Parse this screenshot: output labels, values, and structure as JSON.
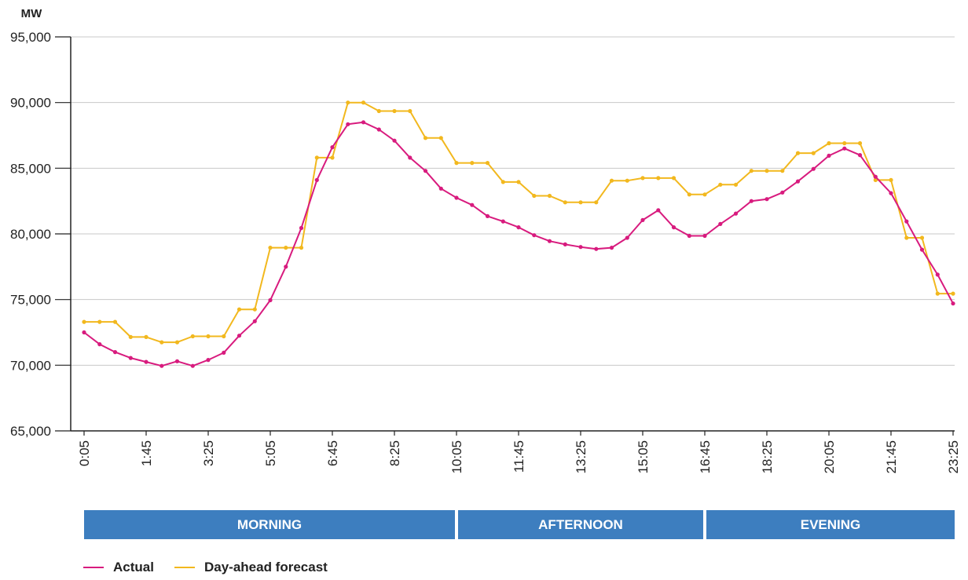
{
  "chart_data": {
    "type": "line",
    "ylabel": "MW",
    "ylim": [
      65000,
      95000
    ],
    "yticks": [
      65000,
      70000,
      75000,
      80000,
      85000,
      90000,
      95000
    ],
    "ytick_labels": [
      "65,000",
      "70,000",
      "75,000",
      "80,000",
      "85,000",
      "90,000",
      "95,000"
    ],
    "x_tick_labels": [
      "0:05",
      "1:45",
      "3:25",
      "5:05",
      "6:45",
      "8:25",
      "10:05",
      "11:45",
      "13:25",
      "15:05",
      "16:45",
      "18:25",
      "20:05",
      "21:45",
      "23:25"
    ],
    "grid": "horizontal",
    "periods": [
      "MORNING",
      "AFTERNOON",
      "EVENING"
    ],
    "period_color": "#3d7ebf",
    "series": [
      {
        "name": "Actual",
        "color": "#d81b7e",
        "values": [
          72500,
          71600,
          71000,
          70550,
          70250,
          69950,
          70300,
          69950,
          70400,
          70950,
          72250,
          73350,
          74950,
          77500,
          80450,
          84100,
          86600,
          88350,
          88500,
          87950,
          87100,
          85800,
          84800,
          83450,
          82750,
          82200,
          81350,
          80950,
          80500,
          79900,
          79450,
          79200,
          79000,
          78850,
          78950,
          79700,
          81050,
          81800,
          80500,
          79850,
          79850,
          80750,
          81550,
          82500,
          82650,
          83150,
          84000,
          84950,
          85950,
          86500,
          86000,
          84350,
          83100,
          80950,
          78800,
          76900,
          74700
        ]
      },
      {
        "name": "Day-ahead forecast",
        "color": "#f2b81e",
        "values": [
          73300,
          73300,
          73300,
          72150,
          72150,
          71750,
          71750,
          72200,
          72200,
          72200,
          74250,
          74250,
          78950,
          78950,
          78950,
          85800,
          85800,
          90000,
          90000,
          89350,
          89350,
          89350,
          87300,
          87300,
          85400,
          85400,
          85400,
          83950,
          83950,
          82900,
          82900,
          82400,
          82400,
          82400,
          84050,
          84050,
          84250,
          84250,
          84250,
          83000,
          83000,
          83750,
          83750,
          84800,
          84800,
          84800,
          86150,
          86150,
          86900,
          86900,
          86900,
          84100,
          84100,
          79700,
          79700,
          75450,
          75450
        ]
      }
    ]
  },
  "legend": {
    "actual_label": "Actual",
    "forecast_label": "Day-ahead forecast"
  }
}
